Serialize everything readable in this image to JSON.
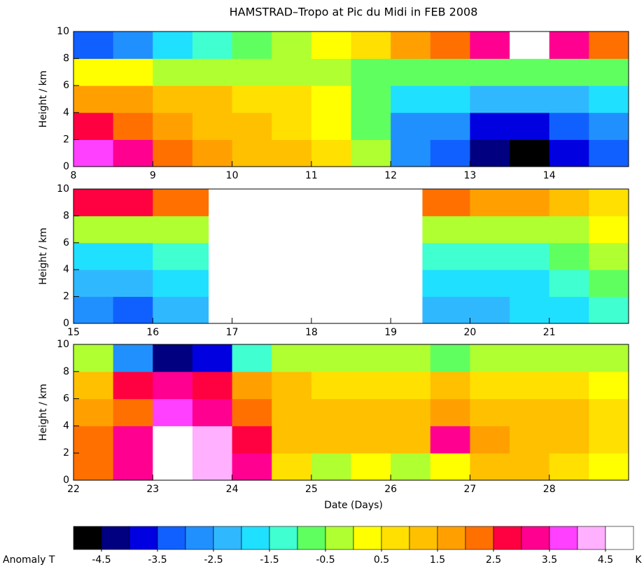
{
  "chart_data": [
    {
      "type": "heatmap",
      "title": "HAMSTRAD–Tropo at Pic du Midi in FEB 2008",
      "ylabel": "Height / km",
      "xlim": [
        8,
        15
      ],
      "xticks": [
        8,
        9,
        10,
        11,
        12,
        13,
        14
      ],
      "ylim": [
        0,
        10
      ],
      "yticks": [
        0,
        2,
        4,
        6,
        8,
        10
      ],
      "x_edges": [
        8,
        8.5,
        9,
        9.5,
        10,
        10.5,
        11,
        11.5,
        12,
        12.5,
        13,
        13.5,
        14,
        14.5,
        15
      ],
      "y_edges": [
        0,
        2,
        4,
        6,
        8,
        10
      ],
      "values": [
        [
          3.5,
          3,
          2,
          1.5,
          1,
          1,
          0.5,
          -0.5,
          -3,
          -3.5,
          -4.5,
          -5,
          -4,
          -3.5
        ],
        [
          2.5,
          2,
          1.5,
          1,
          1,
          0.5,
          0,
          -1,
          -3,
          -3,
          -4,
          -4,
          -3.5,
          -3
        ],
        [
          1.5,
          1.5,
          1,
          1,
          0.5,
          0.5,
          0,
          -1,
          -2,
          -2,
          -2.5,
          -2.5,
          -2.5,
          -2
        ],
        [
          0,
          0,
          -0.5,
          -0.5,
          -0.5,
          -0.5,
          -0.5,
          -1,
          -1,
          -1,
          -1,
          -1,
          -1,
          -1
        ],
        [
          -3.5,
          -3,
          -2,
          -1.5,
          -1,
          -0.5,
          0,
          0.5,
          1.5,
          2,
          3,
          4.5,
          3,
          2
        ]
      ]
    },
    {
      "type": "heatmap",
      "ylabel": "Height / km",
      "xlim": [
        15,
        22
      ],
      "xticks": [
        15,
        16,
        17,
        18,
        19,
        20,
        21
      ],
      "ylim": [
        0,
        10
      ],
      "yticks": [
        0,
        2,
        4,
        6,
        8,
        10
      ],
      "x_edges": [
        15,
        15.5,
        16,
        16.7,
        19.4,
        20,
        20.5,
        21,
        21.5,
        22
      ],
      "y_edges": [
        0,
        2,
        4,
        6,
        8,
        10
      ],
      "values": [
        [
          -3,
          -3.5,
          -2.5,
          null,
          -2.5,
          -2.5,
          -2,
          -2,
          -1.5
        ],
        [
          -2.5,
          -2.5,
          -2,
          null,
          -2,
          -2,
          -2,
          -1.5,
          -1
        ],
        [
          -2,
          -2,
          -1.5,
          null,
          -1.5,
          -1.5,
          -1.5,
          -1,
          -0.5
        ],
        [
          -0.5,
          -0.5,
          -0.5,
          null,
          -0.5,
          -0.5,
          -0.5,
          -0.5,
          0
        ],
        [
          2.5,
          2.5,
          2,
          null,
          2,
          1.5,
          1.5,
          1,
          0.5
        ]
      ]
    },
    {
      "type": "heatmap",
      "ylabel": "Height / km",
      "xlabel": "Date (Days)",
      "xlim": [
        22,
        29
      ],
      "xticks": [
        22,
        23,
        24,
        25,
        26,
        27,
        28
      ],
      "ylim": [
        0,
        10
      ],
      "yticks": [
        0,
        2,
        4,
        6,
        8,
        10
      ],
      "x_edges": [
        22,
        22.5,
        23,
        23.5,
        24,
        24.5,
        25,
        25.5,
        26,
        26.5,
        27,
        27.5,
        28,
        28.5,
        29
      ],
      "y_edges": [
        0,
        2,
        4,
        6,
        8,
        10
      ],
      "values": [
        [
          2,
          3,
          4.5,
          4,
          3,
          0.5,
          -0.5,
          0,
          -0.5,
          0,
          1,
          1,
          0.5,
          0
        ],
        [
          2,
          3,
          4.5,
          4,
          2.5,
          1,
          1,
          1,
          1,
          3,
          1.5,
          1,
          1,
          0.5
        ],
        [
          1.5,
          2,
          3.5,
          3,
          2,
          1,
          1,
          1,
          1,
          1.5,
          1,
          1,
          1,
          0.5
        ],
        [
          1,
          2.5,
          3,
          2.5,
          1.5,
          1,
          0.5,
          0.5,
          0.5,
          1,
          0.5,
          0.5,
          0.5,
          0
        ],
        [
          -0.5,
          -3,
          -4.5,
          -4,
          -1.5,
          -0.5,
          -0.5,
          -0.5,
          -0.5,
          -1,
          -0.5,
          -0.5,
          -0.5,
          -0.5
        ]
      ]
    }
  ],
  "colorbar": {
    "label": "Anomaly T",
    "unit": "K",
    "range": [
      -5,
      5
    ],
    "colors": [
      "#000000",
      "#000080",
      "#0000e0",
      "#1060ff",
      "#2090ff",
      "#30b8ff",
      "#20e0ff",
      "#40ffd0",
      "#60ff60",
      "#b0ff30",
      "#ffff00",
      "#ffe000",
      "#ffc000",
      "#ffa000",
      "#ff7000",
      "#ff0040",
      "#ff0090",
      "#ff40ff",
      "#ffb0ff",
      "#ffffff"
    ],
    "ticks": [
      -4.5,
      -3.5,
      -2.5,
      -1.5,
      -0.5,
      0.5,
      1.5,
      2.5,
      3.5,
      4.5
    ]
  }
}
